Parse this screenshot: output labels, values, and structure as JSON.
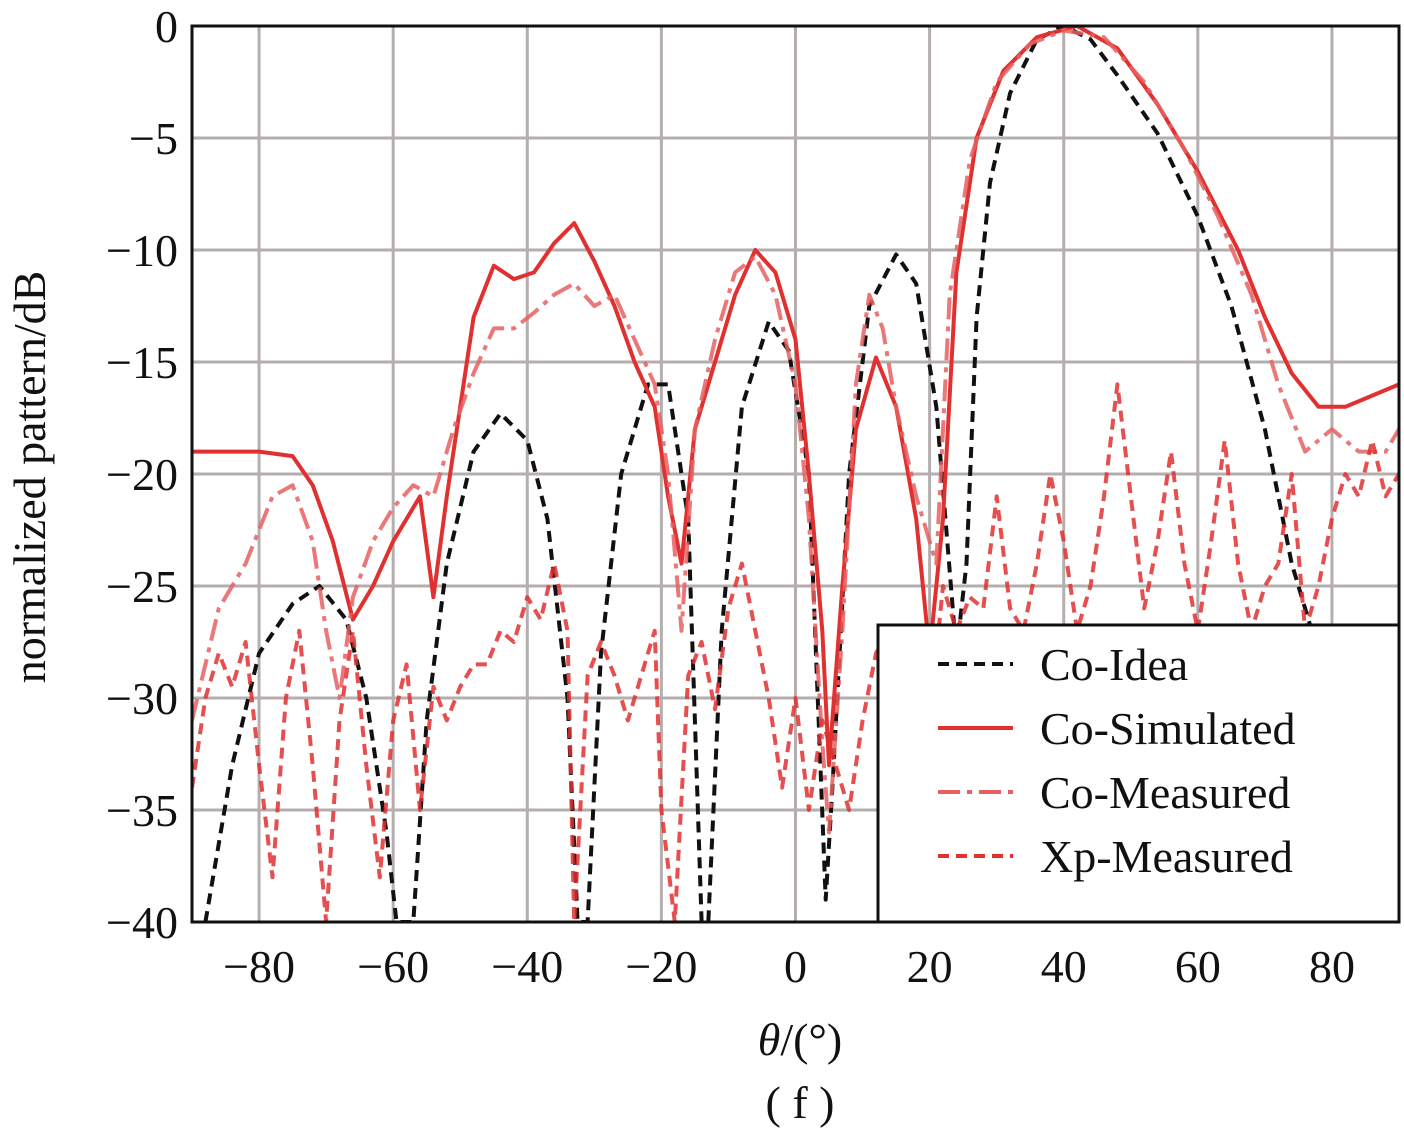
{
  "chart_data": {
    "type": "line",
    "panel_label": "( f )",
    "xlabel_symbol": "θ",
    "xlabel_unit": "/(°)",
    "ylabel": "normalized pattern/dB",
    "xlim": [
      -90,
      90
    ],
    "ylim": [
      -40,
      0
    ],
    "xticks": [
      -80,
      -60,
      -40,
      -20,
      0,
      20,
      40,
      60,
      80
    ],
    "yticks": [
      0,
      -5,
      -10,
      -15,
      -20,
      -25,
      -30,
      -35,
      -40
    ],
    "grid": true,
    "legend_position": "bottom-right",
    "series": [
      {
        "name": "Co-Idea",
        "color": "#111111",
        "style": "dashed",
        "points": [
          [
            -88,
            -40
          ],
          [
            -84,
            -33
          ],
          [
            -80,
            -28
          ],
          [
            -75,
            -25.8
          ],
          [
            -71,
            -25
          ],
          [
            -67,
            -26.5
          ],
          [
            -64,
            -30
          ],
          [
            -61,
            -36
          ],
          [
            -59.5,
            -40
          ],
          [
            -57,
            -40
          ],
          [
            -55,
            -31
          ],
          [
            -52,
            -24
          ],
          [
            -48,
            -19
          ],
          [
            -44,
            -17.3
          ],
          [
            -40,
            -18.5
          ],
          [
            -37,
            -22
          ],
          [
            -34,
            -30
          ],
          [
            -32.5,
            -40
          ],
          [
            -31,
            -40
          ],
          [
            -29,
            -28
          ],
          [
            -26,
            -20
          ],
          [
            -22,
            -16
          ],
          [
            -19,
            -16
          ],
          [
            -16,
            -22
          ],
          [
            -14,
            -40
          ],
          [
            -13,
            -40
          ],
          [
            -11,
            -27
          ],
          [
            -8,
            -17
          ],
          [
            -4,
            -13.2
          ],
          [
            -1,
            -14.5
          ],
          [
            2,
            -20
          ],
          [
            4.5,
            -39
          ],
          [
            5.5,
            -34
          ],
          [
            8,
            -20
          ],
          [
            11,
            -12.5
          ],
          [
            15,
            -10.2
          ],
          [
            18,
            -11.5
          ],
          [
            21,
            -17
          ],
          [
            24,
            -28
          ],
          [
            25.5,
            -24
          ],
          [
            27,
            -13
          ],
          [
            29,
            -7
          ],
          [
            32,
            -3
          ],
          [
            36,
            -0.6
          ],
          [
            40,
            0
          ],
          [
            44,
            -0.6
          ],
          [
            48,
            -2.2
          ],
          [
            54,
            -4.8
          ],
          [
            60,
            -8.5
          ],
          [
            65,
            -12.5
          ],
          [
            70,
            -18
          ],
          [
            74,
            -24
          ],
          [
            78,
            -28
          ]
        ]
      },
      {
        "name": "Co-Simulated",
        "color": "#e03030",
        "style": "solid",
        "points": [
          [
            -90,
            -19
          ],
          [
            -80,
            -19
          ],
          [
            -75,
            -19.2
          ],
          [
            -72,
            -20.5
          ],
          [
            -69,
            -23
          ],
          [
            -66,
            -26.5
          ],
          [
            -63,
            -25
          ],
          [
            -60,
            -23
          ],
          [
            -56,
            -21
          ],
          [
            -54,
            -25.5
          ],
          [
            -52,
            -21
          ],
          [
            -50,
            -17
          ],
          [
            -48,
            -13
          ],
          [
            -45,
            -10.7
          ],
          [
            -42,
            -11.3
          ],
          [
            -39,
            -11
          ],
          [
            -36,
            -9.7
          ],
          [
            -33,
            -8.8
          ],
          [
            -30,
            -10.5
          ],
          [
            -27,
            -12.5
          ],
          [
            -24,
            -15
          ],
          [
            -21,
            -17
          ],
          [
            -19,
            -21
          ],
          [
            -17,
            -24
          ],
          [
            -15,
            -18
          ],
          [
            -12,
            -15
          ],
          [
            -9,
            -12
          ],
          [
            -6,
            -10
          ],
          [
            -3,
            -11
          ],
          [
            0,
            -14
          ],
          [
            2,
            -20
          ],
          [
            4,
            -27
          ],
          [
            5,
            -33
          ],
          [
            7,
            -25
          ],
          [
            9,
            -18
          ],
          [
            12,
            -14.8
          ],
          [
            15,
            -17
          ],
          [
            18,
            -22
          ],
          [
            20,
            -28
          ],
          [
            22,
            -22
          ],
          [
            24,
            -11
          ],
          [
            27,
            -5
          ],
          [
            31,
            -2
          ],
          [
            36,
            -0.5
          ],
          [
            42,
            0
          ],
          [
            48,
            -1
          ],
          [
            54,
            -3.5
          ],
          [
            60,
            -6.5
          ],
          [
            66,
            -10
          ],
          [
            70,
            -13
          ],
          [
            74,
            -15.5
          ],
          [
            78,
            -17
          ],
          [
            82,
            -17
          ],
          [
            86,
            -16.5
          ],
          [
            90,
            -16
          ]
        ]
      },
      {
        "name": "Co-Measured",
        "color": "#e86060",
        "style": "dash-dot",
        "points": [
          [
            -90,
            -31
          ],
          [
            -86,
            -26
          ],
          [
            -82,
            -24
          ],
          [
            -78,
            -21
          ],
          [
            -75,
            -20.5
          ],
          [
            -72,
            -23
          ],
          [
            -70,
            -27
          ],
          [
            -68,
            -30
          ],
          [
            -66,
            -25.5
          ],
          [
            -63,
            -23
          ],
          [
            -60,
            -21.5
          ],
          [
            -57,
            -20.5
          ],
          [
            -54,
            -21
          ],
          [
            -51,
            -18
          ],
          [
            -48,
            -15.5
          ],
          [
            -45,
            -13.5
          ],
          [
            -42,
            -13.5
          ],
          [
            -39,
            -12.8
          ],
          [
            -36,
            -12
          ],
          [
            -33,
            -11.5
          ],
          [
            -30,
            -12.5
          ],
          [
            -27,
            -12
          ],
          [
            -24,
            -14
          ],
          [
            -21,
            -16
          ],
          [
            -19,
            -20
          ],
          [
            -17,
            -27
          ],
          [
            -15,
            -18
          ],
          [
            -12,
            -14
          ],
          [
            -9,
            -11
          ],
          [
            -6,
            -10.3
          ],
          [
            -3,
            -12
          ],
          [
            0,
            -16
          ],
          [
            2,
            -22
          ],
          [
            4,
            -32
          ],
          [
            5,
            -36
          ],
          [
            7,
            -27
          ],
          [
            9,
            -16
          ],
          [
            11,
            -12
          ],
          [
            13,
            -13.5
          ],
          [
            15,
            -17
          ],
          [
            18,
            -21
          ],
          [
            21,
            -24
          ],
          [
            23,
            -12
          ],
          [
            26,
            -6
          ],
          [
            30,
            -2.5
          ],
          [
            35,
            -0.8
          ],
          [
            40,
            -0.2
          ],
          [
            46,
            -0.5
          ],
          [
            52,
            -2.5
          ],
          [
            58,
            -5.5
          ],
          [
            63,
            -8.5
          ],
          [
            68,
            -12
          ],
          [
            72,
            -16
          ],
          [
            76,
            -19
          ],
          [
            80,
            -18
          ],
          [
            84,
            -19
          ],
          [
            88,
            -19
          ],
          [
            90,
            -18
          ]
        ]
      },
      {
        "name": "Xp-Measured",
        "color": "#e03030",
        "style": "dashed",
        "points": [
          [
            -90,
            -34
          ],
          [
            -88,
            -30
          ],
          [
            -86,
            -28
          ],
          [
            -84,
            -29.5
          ],
          [
            -82,
            -27.5
          ],
          [
            -80,
            -33
          ],
          [
            -78,
            -38
          ],
          [
            -76,
            -30
          ],
          [
            -74,
            -27
          ],
          [
            -72,
            -33
          ],
          [
            -70,
            -40
          ],
          [
            -68,
            -31
          ],
          [
            -66,
            -27
          ],
          [
            -64,
            -33
          ],
          [
            -62,
            -38
          ],
          [
            -60,
            -31
          ],
          [
            -58,
            -28.5
          ],
          [
            -56,
            -35
          ],
          [
            -54,
            -29.5
          ],
          [
            -52,
            -31
          ],
          [
            -50,
            -29.5
          ],
          [
            -48,
            -28.5
          ],
          [
            -46,
            -28.5
          ],
          [
            -44,
            -27
          ],
          [
            -42,
            -27.5
          ],
          [
            -40,
            -25.5
          ],
          [
            -38,
            -26.5
          ],
          [
            -36,
            -24
          ],
          [
            -34,
            -27
          ],
          [
            -33,
            -40
          ],
          [
            -31,
            -29
          ],
          [
            -29,
            -27.5
          ],
          [
            -27,
            -29
          ],
          [
            -25,
            -31
          ],
          [
            -23,
            -29
          ],
          [
            -21,
            -27
          ],
          [
            -20,
            -35
          ],
          [
            -18,
            -40
          ],
          [
            -16,
            -29
          ],
          [
            -14,
            -27.5
          ],
          [
            -12,
            -30.5
          ],
          [
            -10,
            -26
          ],
          [
            -8,
            -24
          ],
          [
            -6,
            -27
          ],
          [
            -4,
            -30
          ],
          [
            -2,
            -34
          ],
          [
            0,
            -30
          ],
          [
            2,
            -35
          ],
          [
            4,
            -31
          ],
          [
            6,
            -33
          ],
          [
            8,
            -35
          ],
          [
            10,
            -31
          ],
          [
            12,
            -28
          ],
          [
            14,
            -27
          ],
          [
            16,
            -28.5
          ],
          [
            18,
            -27
          ],
          [
            20,
            -31
          ],
          [
            22,
            -25
          ],
          [
            24,
            -27
          ],
          [
            26,
            -25.5
          ],
          [
            28,
            -26
          ],
          [
            30,
            -21
          ],
          [
            32,
            -26
          ],
          [
            34,
            -27
          ],
          [
            36,
            -24
          ],
          [
            38,
            -20
          ],
          [
            40,
            -23
          ],
          [
            42,
            -27
          ],
          [
            44,
            -25
          ],
          [
            46,
            -21
          ],
          [
            48,
            -16
          ],
          [
            50,
            -21
          ],
          [
            52,
            -26
          ],
          [
            54,
            -23
          ],
          [
            56,
            -19
          ],
          [
            58,
            -24
          ],
          [
            60,
            -27
          ],
          [
            62,
            -23
          ],
          [
            64,
            -18.5
          ],
          [
            66,
            -24
          ],
          [
            68,
            -27
          ],
          [
            70,
            -25
          ],
          [
            72,
            -24
          ],
          [
            74,
            -20
          ],
          [
            76,
            -27
          ],
          [
            78,
            -25
          ],
          [
            80,
            -22
          ],
          [
            82,
            -20
          ],
          [
            84,
            -21
          ],
          [
            86,
            -18.5
          ],
          [
            88,
            -21
          ],
          [
            90,
            -20
          ]
        ]
      }
    ]
  }
}
